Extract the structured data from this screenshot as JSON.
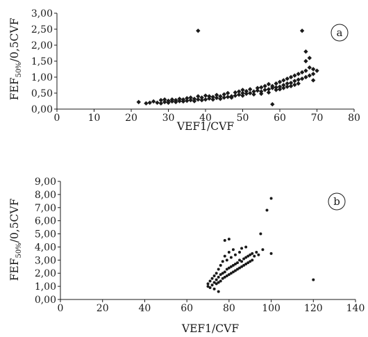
{
  "chart_data": [
    {
      "panel": "a",
      "type": "scatter",
      "xlabel": "VEF1/CVF",
      "ylabel_main": "FEF",
      "ylabel_sub": "50%",
      "ylabel_tail": "/0,5CVF",
      "xlim": [
        0,
        80
      ],
      "ylim": [
        0,
        3
      ],
      "xticks": [
        "0",
        "10",
        "20",
        "30",
        "40",
        "50",
        "60",
        "70",
        "80"
      ],
      "yticks": [
        "0,00",
        "0,50",
        "1,00",
        "1,50",
        "2,00",
        "2,50",
        "3,00"
      ],
      "grid": false,
      "points": [
        [
          22,
          0.22
        ],
        [
          24,
          0.18
        ],
        [
          25,
          0.2
        ],
        [
          26,
          0.24
        ],
        [
          27,
          0.2
        ],
        [
          28,
          0.18
        ],
        [
          28,
          0.28
        ],
        [
          29,
          0.22
        ],
        [
          29,
          0.3
        ],
        [
          30,
          0.2
        ],
        [
          30,
          0.26
        ],
        [
          31,
          0.24
        ],
        [
          31,
          0.3
        ],
        [
          32,
          0.22
        ],
        [
          32,
          0.28
        ],
        [
          33,
          0.25
        ],
        [
          33,
          0.32
        ],
        [
          34,
          0.24
        ],
        [
          34,
          0.3
        ],
        [
          35,
          0.26
        ],
        [
          35,
          0.34
        ],
        [
          36,
          0.28
        ],
        [
          36,
          0.36
        ],
        [
          37,
          0.25
        ],
        [
          37,
          0.32
        ],
        [
          38,
          0.3
        ],
        [
          38,
          0.4
        ],
        [
          38,
          2.45
        ],
        [
          39,
          0.28
        ],
        [
          39,
          0.36
        ],
        [
          40,
          0.3
        ],
        [
          40,
          0.42
        ],
        [
          41,
          0.33
        ],
        [
          41,
          0.4
        ],
        [
          42,
          0.3
        ],
        [
          42,
          0.38
        ],
        [
          43,
          0.35
        ],
        [
          43,
          0.44
        ],
        [
          44,
          0.32
        ],
        [
          44,
          0.4
        ],
        [
          45,
          0.36
        ],
        [
          45,
          0.46
        ],
        [
          46,
          0.38
        ],
        [
          46,
          0.5
        ],
        [
          47,
          0.4
        ],
        [
          47,
          0.36
        ],
        [
          48,
          0.42
        ],
        [
          48,
          0.52
        ],
        [
          49,
          0.45
        ],
        [
          49,
          0.55
        ],
        [
          50,
          0.42
        ],
        [
          50,
          0.5
        ],
        [
          50,
          0.6
        ],
        [
          51,
          0.48
        ],
        [
          51,
          0.56
        ],
        [
          52,
          0.5
        ],
        [
          52,
          0.62
        ],
        [
          53,
          0.55
        ],
        [
          53,
          0.46
        ],
        [
          54,
          0.58
        ],
        [
          54,
          0.66
        ],
        [
          55,
          0.55
        ],
        [
          55,
          0.68
        ],
        [
          55,
          0.48
        ],
        [
          56,
          0.6
        ],
        [
          56,
          0.72
        ],
        [
          57,
          0.62
        ],
        [
          57,
          0.52
        ],
        [
          57,
          0.78
        ],
        [
          58,
          0.66
        ],
        [
          58,
          0.72
        ],
        [
          58,
          0.15
        ],
        [
          59,
          0.68
        ],
        [
          59,
          0.8
        ],
        [
          59,
          0.6
        ],
        [
          60,
          0.7
        ],
        [
          60,
          0.85
        ],
        [
          60,
          0.62
        ],
        [
          61,
          0.75
        ],
        [
          61,
          0.9
        ],
        [
          61,
          0.66
        ],
        [
          62,
          0.8
        ],
        [
          62,
          0.95
        ],
        [
          62,
          0.7
        ],
        [
          63,
          0.82
        ],
        [
          63,
          1.0
        ],
        [
          63,
          0.72
        ],
        [
          64,
          0.88
        ],
        [
          64,
          1.05
        ],
        [
          64,
          0.76
        ],
        [
          65,
          0.92
        ],
        [
          65,
          1.1
        ],
        [
          65,
          0.8
        ],
        [
          66,
          0.95
        ],
        [
          66,
          1.15
        ],
        [
          66,
          2.45
        ],
        [
          67,
          1.0
        ],
        [
          67,
          1.2
        ],
        [
          67,
          1.5
        ],
        [
          67,
          1.8
        ],
        [
          68,
          1.05
        ],
        [
          68,
          1.3
        ],
        [
          68,
          1.6
        ],
        [
          69,
          1.1
        ],
        [
          69,
          1.25
        ],
        [
          69,
          0.9
        ],
        [
          70,
          1.2
        ]
      ]
    },
    {
      "panel": "b",
      "type": "scatter",
      "xlabel": "VEF1/CVF",
      "ylabel_main": "FEF",
      "ylabel_sub": "50%",
      "ylabel_tail": "/0,5CVF",
      "xlim": [
        0,
        140
      ],
      "ylim": [
        0,
        9
      ],
      "xticks": [
        "0",
        "20",
        "40",
        "60",
        "80",
        "100",
        "120",
        "140"
      ],
      "yticks": [
        "0,00",
        "1,00",
        "2,00",
        "3,00",
        "4,00",
        "5,00",
        "6,00",
        "7,00",
        "8,00",
        "9,00"
      ],
      "grid": false,
      "points": [
        [
          70,
          1.2
        ],
        [
          70,
          1.0
        ],
        [
          71,
          1.4
        ],
        [
          71,
          0.9
        ],
        [
          72,
          1.1
        ],
        [
          72,
          1.6
        ],
        [
          73,
          1.3
        ],
        [
          73,
          1.8
        ],
        [
          73,
          0.8
        ],
        [
          74,
          1.5
        ],
        [
          74,
          2.0
        ],
        [
          74,
          1.2
        ],
        [
          75,
          1.7
        ],
        [
          75,
          1.3
        ],
        [
          75,
          2.3
        ],
        [
          75,
          0.6
        ],
        [
          76,
          1.9
        ],
        [
          76,
          1.4
        ],
        [
          76,
          2.6
        ],
        [
          77,
          2.0
        ],
        [
          77,
          1.6
        ],
        [
          77,
          2.9
        ],
        [
          78,
          2.1
        ],
        [
          78,
          1.7
        ],
        [
          78,
          3.3
        ],
        [
          78,
          4.5
        ],
        [
          79,
          2.3
        ],
        [
          79,
          1.8
        ],
        [
          79,
          3.0
        ],
        [
          80,
          2.4
        ],
        [
          80,
          1.9
        ],
        [
          80,
          3.6
        ],
        [
          80,
          4.6
        ],
        [
          81,
          2.5
        ],
        [
          81,
          2.0
        ],
        [
          81,
          3.2
        ],
        [
          82,
          2.6
        ],
        [
          82,
          2.1
        ],
        [
          82,
          3.8
        ],
        [
          83,
          2.7
        ],
        [
          83,
          2.2
        ],
        [
          83,
          3.4
        ],
        [
          84,
          2.8
        ],
        [
          84,
          2.3
        ],
        [
          85,
          3.0
        ],
        [
          85,
          2.4
        ],
        [
          85,
          3.6
        ],
        [
          86,
          2.9
        ],
        [
          86,
          2.5
        ],
        [
          86,
          3.9
        ],
        [
          87,
          3.1
        ],
        [
          87,
          2.6
        ],
        [
          88,
          3.2
        ],
        [
          88,
          2.7
        ],
        [
          88,
          4.0
        ],
        [
          89,
          3.3
        ],
        [
          89,
          2.8
        ],
        [
          90,
          3.4
        ],
        [
          90,
          2.9
        ],
        [
          91,
          3.5
        ],
        [
          91,
          3.0
        ],
        [
          92,
          3.3
        ],
        [
          93,
          3.6
        ],
        [
          94,
          3.4
        ],
        [
          95,
          5.0
        ],
        [
          96,
          3.8
        ],
        [
          98,
          6.8
        ],
        [
          100,
          7.7
        ],
        [
          100,
          3.5
        ],
        [
          120,
          1.5
        ]
      ]
    }
  ]
}
